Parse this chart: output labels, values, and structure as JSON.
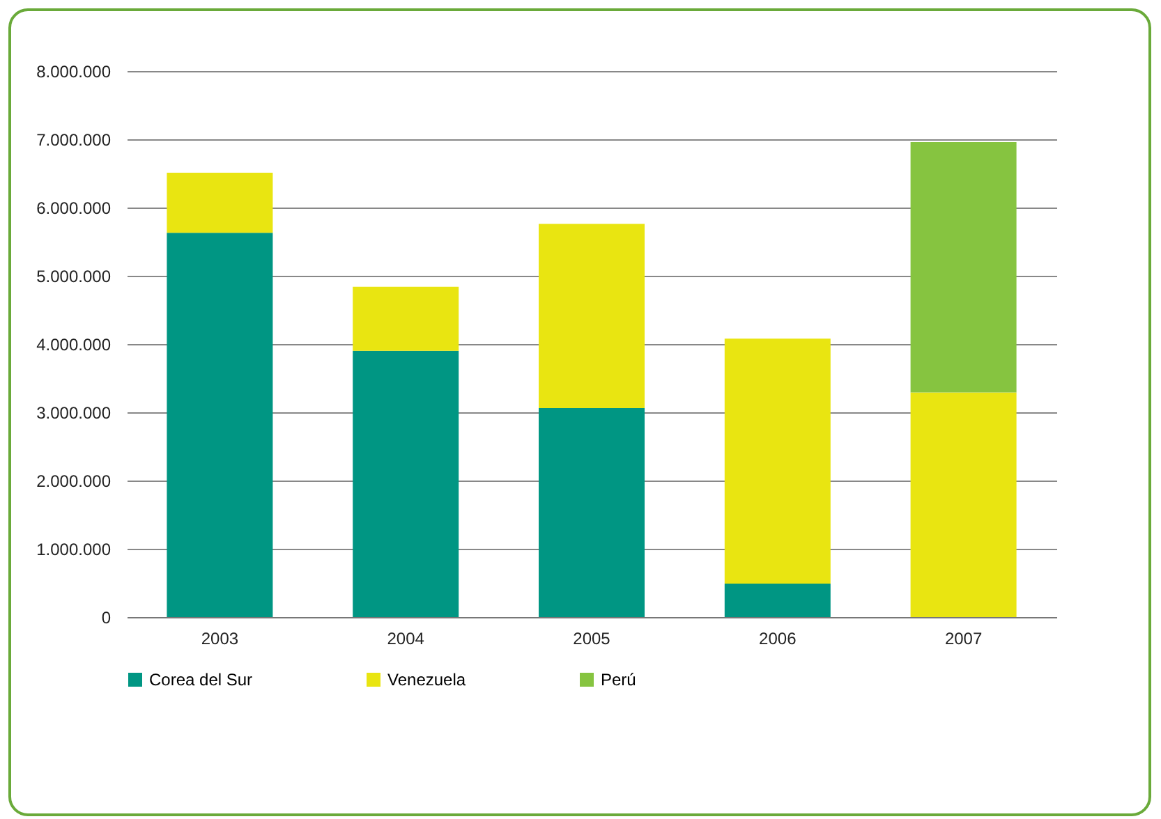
{
  "chart_data": {
    "type": "bar",
    "stacked": true,
    "categories": [
      "2003",
      "2004",
      "2005",
      "2006",
      "2007"
    ],
    "series": [
      {
        "name": "Corea del Sur",
        "color": "#009683",
        "values": [
          5630000,
          3900000,
          3060000,
          490000,
          null
        ]
      },
      {
        "name": "Venezuela",
        "color": "#e9e511",
        "values": [
          880000,
          940000,
          2700000,
          3590000,
          3290000
        ]
      },
      {
        "name": "Perú",
        "color": "#86c440",
        "values": [
          null,
          null,
          null,
          null,
          3670000
        ]
      }
    ],
    "ylim": [
      0,
      8000000
    ],
    "yticks": [
      {
        "value": 0,
        "label": "0"
      },
      {
        "value": 1000000,
        "label": "1.000.000"
      },
      {
        "value": 2000000,
        "label": "2.000.000"
      },
      {
        "value": 3000000,
        "label": "3.000.000"
      },
      {
        "value": 4000000,
        "label": "4.000.000"
      },
      {
        "value": 5000000,
        "label": "5.000.000"
      },
      {
        "value": 6000000,
        "label": "6.000.000"
      },
      {
        "value": 7000000,
        "label": "7.000.000"
      },
      {
        "value": 8000000,
        "label": "8.000.000"
      }
    ],
    "grid": "y",
    "legend": "bottom"
  }
}
